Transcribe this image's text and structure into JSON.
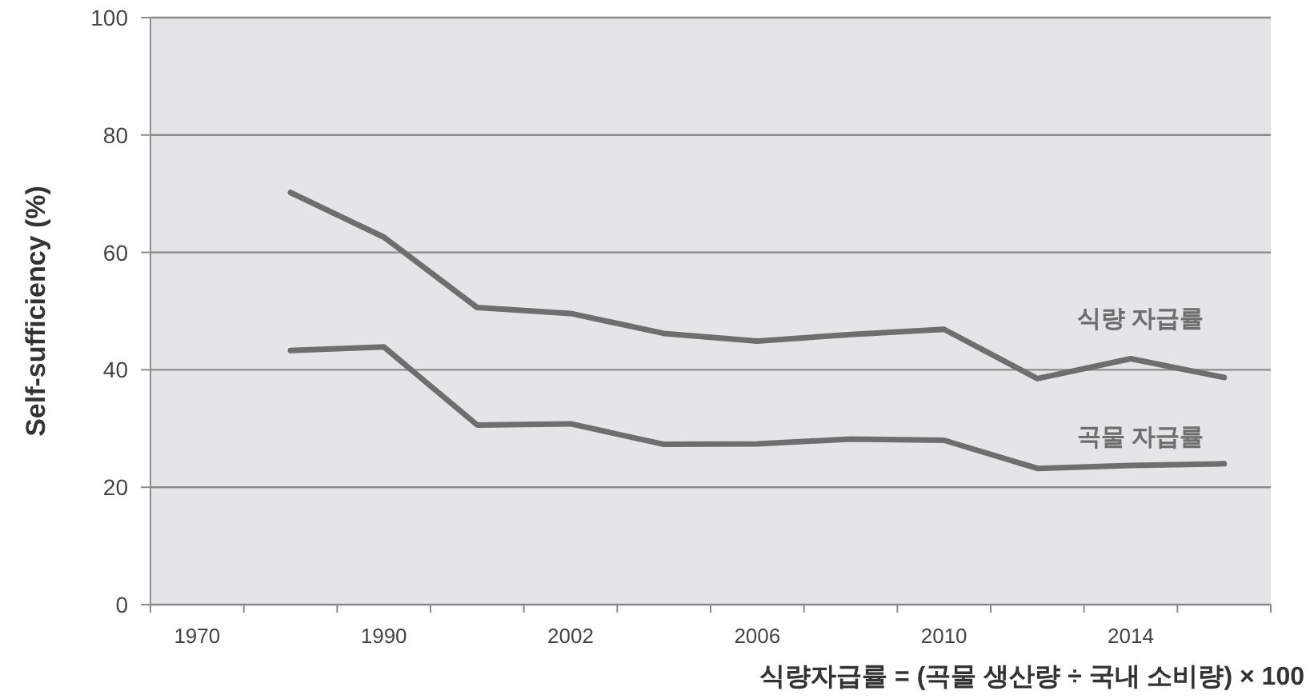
{
  "chart_data": {
    "type": "line",
    "ylabel": "Self-sufficiency (%)",
    "annotations": [
      "식량자급률 = (곡물 생산량 ÷ 국내 소비량) × 100"
    ],
    "categories": [
      "1970",
      null,
      "1990",
      null,
      "2002",
      null,
      "2006",
      null,
      "2010",
      null,
      "2014",
      null
    ],
    "series": [
      {
        "name": "식량 자급률",
        "color": "#6e6e6e",
        "values": [
          null,
          70.2,
          62.6,
          50.6,
          49.6,
          46.2,
          44.9,
          46.0,
          46.9,
          38.5,
          41.9,
          38.7
        ]
      },
      {
        "name": "곡물 자급률",
        "color": "#6e6e6e",
        "values": [
          null,
          43.3,
          43.9,
          30.6,
          30.8,
          27.3,
          27.4,
          28.2,
          28.0,
          23.2,
          23.7,
          24.0
        ]
      }
    ],
    "ylim": [
      0,
      100
    ],
    "yticks": [
      0,
      20,
      40,
      60,
      80,
      100
    ],
    "grid": "y"
  }
}
